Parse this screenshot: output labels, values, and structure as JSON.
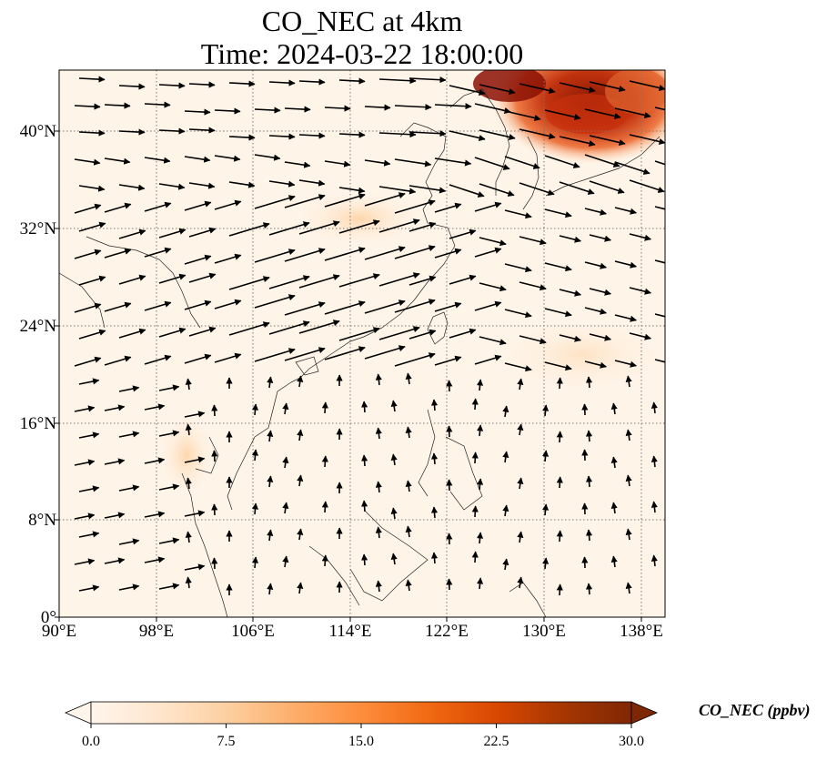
{
  "title": {
    "line1": "CO_NEC at 4km",
    "line2": "Time: 2024-03-22 18:00:00"
  },
  "map": {
    "lon_range": [
      90,
      140
    ],
    "lat_range": [
      0,
      45
    ],
    "lat_ticks": [
      {
        "value": 40,
        "label": "40°N"
      },
      {
        "value": 32,
        "label": "32°N"
      },
      {
        "value": 24,
        "label": "24°N"
      },
      {
        "value": 16,
        "label": "16°N"
      },
      {
        "value": 8,
        "label": "8°N"
      },
      {
        "value": 0,
        "label": "0°"
      }
    ],
    "lon_ticks": [
      {
        "value": 90,
        "label": "90°E"
      },
      {
        "value": 98,
        "label": "98°E"
      },
      {
        "value": 106,
        "label": "106°E"
      },
      {
        "value": 114,
        "label": "114°E"
      },
      {
        "value": 122,
        "label": "122°E"
      },
      {
        "value": 130,
        "label": "130°E"
      },
      {
        "value": 138,
        "label": "138°E"
      }
    ],
    "gridlines": true,
    "vectors": "wind arrows"
  },
  "colorbar": {
    "label": "CO_NEC (ppbv)",
    "min": 0.0,
    "max": 30.0,
    "ticks": [
      "0.0",
      "7.5",
      "15.0",
      "22.5",
      "30.0"
    ],
    "colormap": [
      "#fff5eb",
      "#fee6ce",
      "#fdd0a2",
      "#fdae6b",
      "#fd8d3c",
      "#f16913",
      "#d94801",
      "#a63603",
      "#7f2704"
    ],
    "extend": "both"
  }
}
